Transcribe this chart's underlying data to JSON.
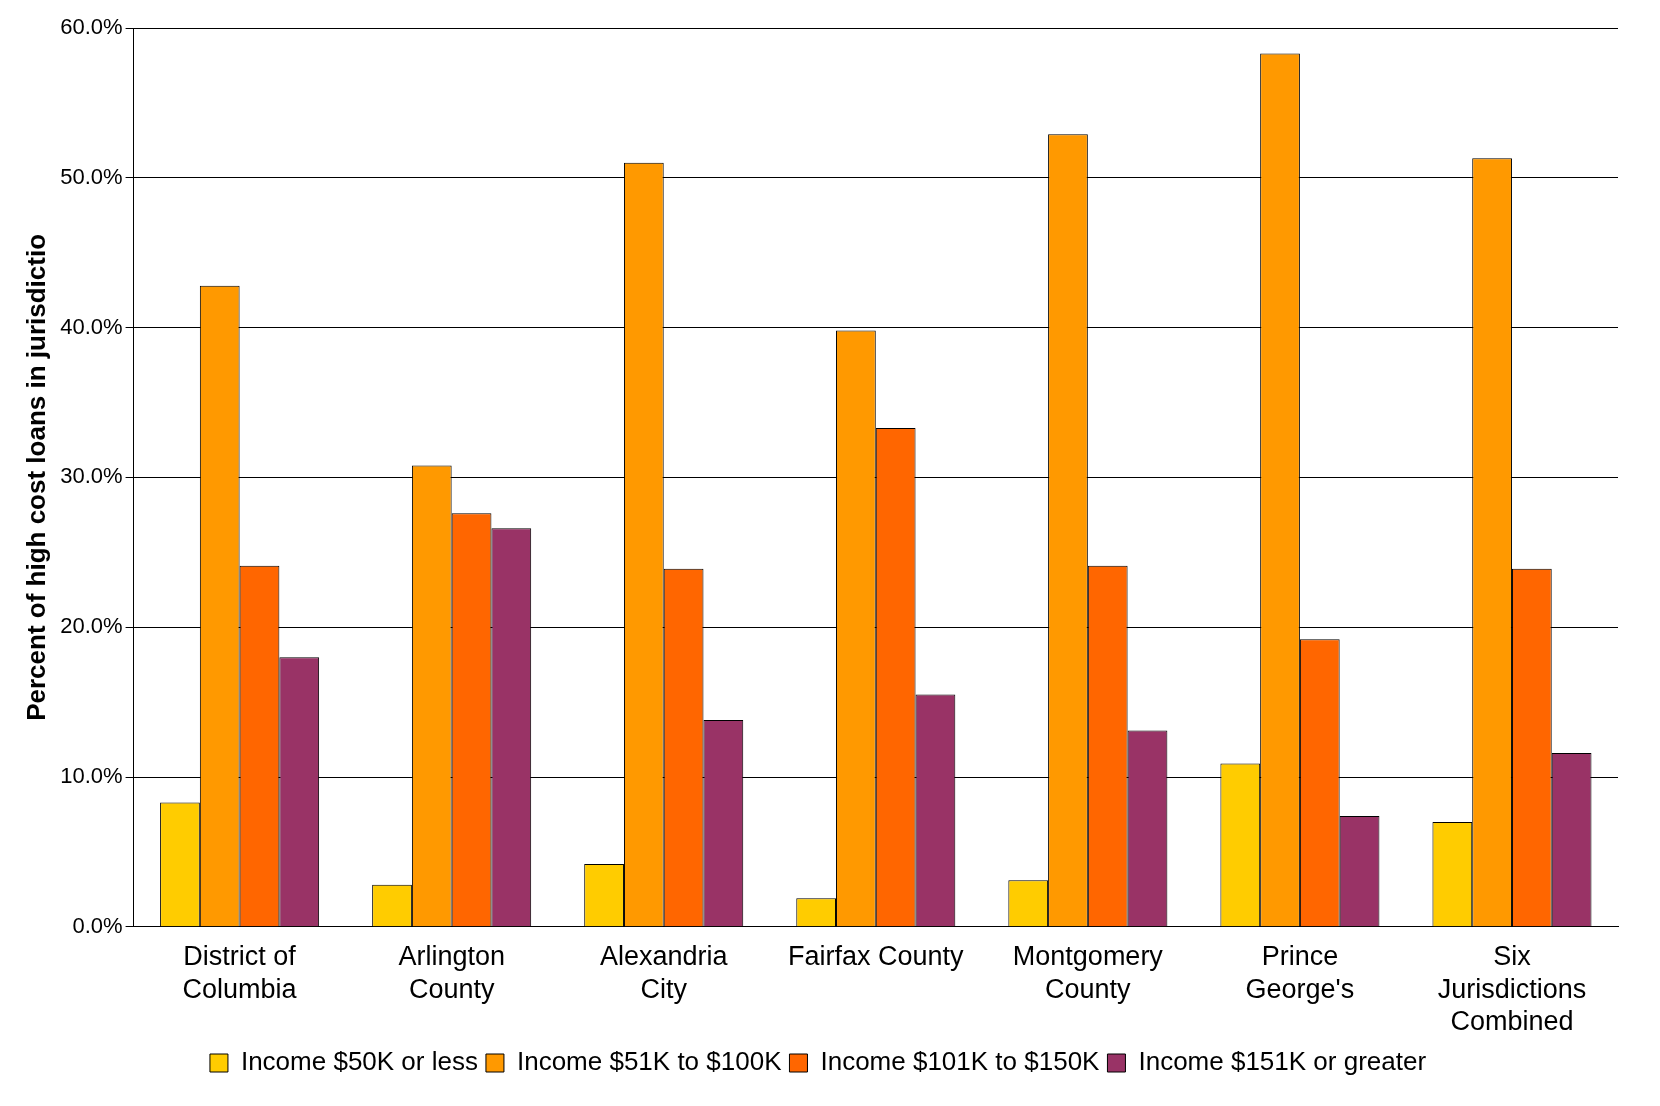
{
  "chart_data": {
    "type": "bar",
    "ylabel": "Percent of high cost loans in jurisdictio",
    "categories": [
      "District of Columbia",
      "Arlington County",
      "Alexandria City",
      "Fairfax County",
      "Montgomery County",
      "Prince George's",
      "Six Jurisdictions Combined"
    ],
    "series": [
      {
        "name": "Income $50K or less",
        "color": "#ffcc00",
        "values": [
          8.3,
          2.8,
          4.2,
          1.9,
          3.1,
          10.9,
          7.0
        ]
      },
      {
        "name": "Income $51K to $100K",
        "color": "#ff9900",
        "values": [
          42.8,
          30.8,
          51.0,
          39.8,
          52.9,
          58.3,
          51.3
        ]
      },
      {
        "name": "Income $101K to $150K",
        "color": "#ff6600",
        "values": [
          24.1,
          27.6,
          23.9,
          33.3,
          24.1,
          19.2,
          23.9
        ]
      },
      {
        "name": "Income $151K or greater",
        "color": "#993366",
        "values": [
          18.0,
          26.6,
          13.8,
          15.5,
          13.1,
          7.4,
          11.6
        ]
      }
    ],
    "ylim": [
      0,
      60
    ],
    "yticks": [
      {
        "value": 0,
        "label": "0.0%"
      },
      {
        "value": 10,
        "label": "10.0%"
      },
      {
        "value": 20,
        "label": "20.0%"
      },
      {
        "value": 30,
        "label": "30.0%"
      },
      {
        "value": 40,
        "label": "40.0%"
      },
      {
        "value": 50,
        "label": "50.0%"
      },
      {
        "value": 60,
        "label": "60.0%"
      }
    ],
    "grid": "y",
    "legend": "bottom"
  }
}
